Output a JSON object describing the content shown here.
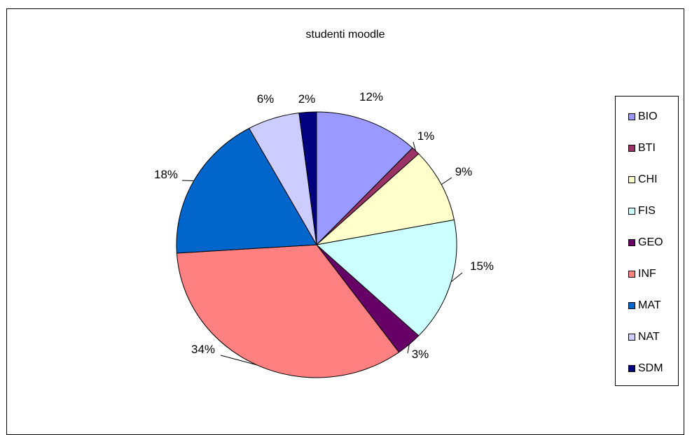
{
  "chart_data": {
    "type": "pie",
    "title": "studenti moodle",
    "legend_position": "right",
    "categories": [
      "BIO",
      "BTI",
      "CHI",
      "FIS",
      "GEO",
      "INF",
      "MAT",
      "NAT",
      "SDM"
    ],
    "values": [
      12,
      1,
      9,
      15,
      3,
      34,
      18,
      6,
      2
    ],
    "labels": [
      "12%",
      "1%",
      "9%",
      "15%",
      "3%",
      "34%",
      "18%",
      "6%",
      "2%"
    ],
    "colors": [
      "#9999FF",
      "#993366",
      "#FFFFCC",
      "#CCFFFF",
      "#660066",
      "#FF8080",
      "#0066CC",
      "#CCCCFF",
      "#000080"
    ]
  }
}
